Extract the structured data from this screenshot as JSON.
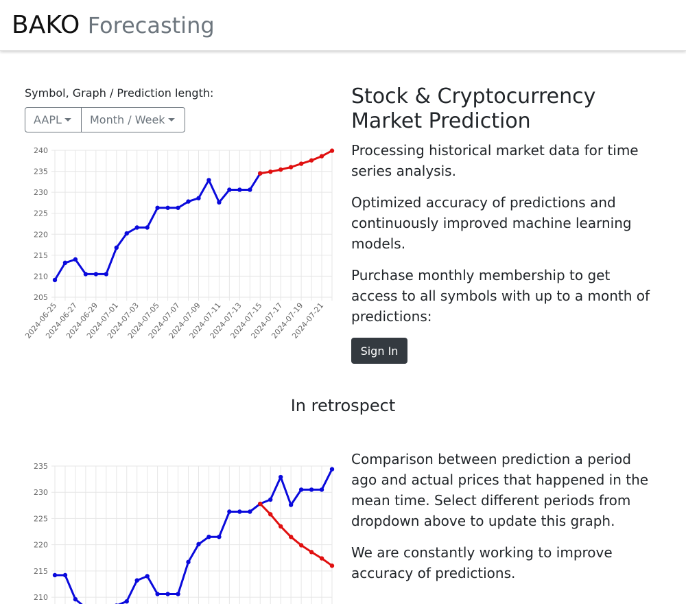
{
  "brand": {
    "name": "BAKO",
    "suffix": "Forecasting"
  },
  "controls": {
    "label": "Symbol, Graph / Prediction length:",
    "symbol": "AAPL",
    "period": "Month / Week"
  },
  "hero": {
    "title": "Stock & Cryptocurrency Market Prediction",
    "p1": "Processing historical market data for time series analysis.",
    "p2": "Optimized accuracy of predictions and continuously improved machine learning models.",
    "p3": "Purchase monthly membership to get access to all symbols with up to a month of predictions:",
    "signin": "Sign In"
  },
  "retro": {
    "title": "In retrospect",
    "p1": "Comparison between prediction a period ago and actual prices that happened in the mean time. Select different periods from dropdown above to update this graph.",
    "p2": "We are constantly working to improve accuracy of predictions."
  },
  "colors": {
    "actual": "#0a0adc",
    "predicted": "#e01010",
    "grid": "#e6e6e6"
  },
  "chart_data": [
    {
      "type": "line",
      "title": "",
      "xlabel": "",
      "ylabel": "",
      "ylim": [
        205,
        240
      ],
      "yticks": [
        205,
        210,
        215,
        220,
        225,
        230,
        235,
        240
      ],
      "grid": true,
      "x_tick_labels": [
        "2024-06-25",
        "2024-06-27",
        "2024-06-29",
        "2024-07-01",
        "2024-07-03",
        "2024-07-05",
        "2024-07-07",
        "2024-07-09",
        "2024-07-11",
        "2024-07-13",
        "2024-07-15",
        "2024-07-17",
        "2024-07-19",
        "2024-07-21"
      ],
      "x": [
        "2024-06-25",
        "2024-06-26",
        "2024-06-27",
        "2024-06-28",
        "2024-06-29",
        "2024-06-30",
        "2024-07-01",
        "2024-07-02",
        "2024-07-03",
        "2024-07-04",
        "2024-07-05",
        "2024-07-06",
        "2024-07-07",
        "2024-07-08",
        "2024-07-09",
        "2024-07-10",
        "2024-07-11",
        "2024-07-12",
        "2024-07-13",
        "2024-07-14",
        "2024-07-15",
        "2024-07-16",
        "2024-07-17",
        "2024-07-18",
        "2024-07-19",
        "2024-07-20",
        "2024-07-21",
        "2024-07-22"
      ],
      "series": [
        {
          "color": "#0a0adc",
          "values": [
            209.1,
            213.2,
            214.0,
            210.5,
            210.5,
            210.5,
            216.8,
            220.2,
            221.6,
            221.6,
            226.3,
            226.3,
            226.3,
            227.8,
            228.6,
            232.9,
            227.6,
            230.6,
            230.6,
            230.6,
            234.5,
            null,
            null,
            null,
            null,
            null,
            null,
            null
          ]
        },
        {
          "color": "#e01010",
          "values": [
            null,
            null,
            null,
            null,
            null,
            null,
            null,
            null,
            null,
            null,
            null,
            null,
            null,
            null,
            null,
            null,
            null,
            null,
            null,
            null,
            234.5,
            234.9,
            235.4,
            236.0,
            236.8,
            237.6,
            238.6,
            239.9
          ]
        }
      ]
    },
    {
      "type": "line",
      "title": "",
      "xlabel": "",
      "ylabel": "",
      "ylim": [
        207,
        235
      ],
      "yticks": [
        210,
        215,
        220,
        225,
        230,
        235
      ],
      "grid": true,
      "x": [
        "2024-06-25",
        "2024-06-26",
        "2024-06-27",
        "2024-06-28",
        "2024-06-29",
        "2024-06-30",
        "2024-07-01",
        "2024-07-02",
        "2024-07-03",
        "2024-07-04",
        "2024-07-05",
        "2024-07-06",
        "2024-07-07",
        "2024-07-08",
        "2024-07-09",
        "2024-07-10",
        "2024-07-11",
        "2024-07-12",
        "2024-07-13",
        "2024-07-14",
        "2024-07-15",
        "2024-07-16",
        "2024-07-17",
        "2024-07-18",
        "2024-07-19",
        "2024-07-20",
        "2024-07-21",
        "2024-07-22"
      ],
      "series": [
        {
          "color": "#0a0adc",
          "values": [
            214.2,
            214.2,
            209.6,
            208.0,
            208.0,
            208.0,
            208.4,
            209.2,
            213.2,
            214.0,
            210.6,
            210.6,
            210.6,
            216.7,
            220.1,
            221.5,
            221.5,
            226.3,
            226.3,
            226.3,
            227.8,
            228.6,
            232.9,
            227.6,
            230.5,
            230.5,
            230.5,
            234.4
          ]
        },
        {
          "color": "#e01010",
          "values": [
            null,
            null,
            null,
            null,
            null,
            null,
            null,
            null,
            null,
            null,
            null,
            null,
            null,
            null,
            null,
            null,
            null,
            null,
            null,
            null,
            227.8,
            225.8,
            223.5,
            221.5,
            219.9,
            218.6,
            217.4,
            216.0
          ]
        }
      ]
    }
  ]
}
